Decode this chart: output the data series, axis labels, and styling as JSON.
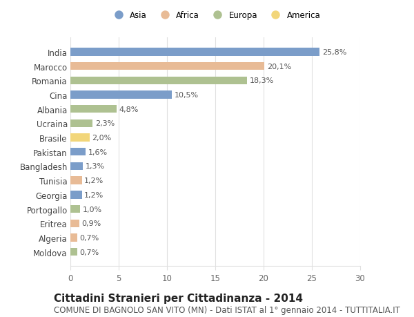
{
  "categories": [
    "India",
    "Marocco",
    "Romania",
    "Cina",
    "Albania",
    "Ucraina",
    "Brasile",
    "Pakistan",
    "Bangladesh",
    "Tunisia",
    "Georgia",
    "Portogallo",
    "Eritrea",
    "Algeria",
    "Moldova"
  ],
  "values": [
    25.8,
    20.1,
    18.3,
    10.5,
    4.8,
    2.3,
    2.0,
    1.6,
    1.3,
    1.2,
    1.2,
    1.0,
    0.9,
    0.7,
    0.7
  ],
  "labels": [
    "25,8%",
    "20,1%",
    "18,3%",
    "10,5%",
    "4,8%",
    "2,3%",
    "2,0%",
    "1,6%",
    "1,3%",
    "1,2%",
    "1,2%",
    "1,0%",
    "0,9%",
    "0,7%",
    "0,7%"
  ],
  "continents": [
    "Asia",
    "Africa",
    "Europa",
    "Asia",
    "Europa",
    "Europa",
    "America",
    "Asia",
    "Asia",
    "Africa",
    "Asia",
    "Europa",
    "Africa",
    "Africa",
    "Europa"
  ],
  "continent_colors": {
    "Asia": "#7b9dc9",
    "Africa": "#e8bb96",
    "Europa": "#aec191",
    "America": "#f2d67a"
  },
  "legend_order": [
    "Asia",
    "Africa",
    "Europa",
    "America"
  ],
  "title": "Cittadini Stranieri per Cittadinanza - 2014",
  "subtitle": "COMUNE DI BAGNOLO SAN VITO (MN) - Dati ISTAT al 1° gennaio 2014 - TUTTITALIA.IT",
  "xlim": [
    0,
    30
  ],
  "xticks": [
    0,
    5,
    10,
    15,
    20,
    25,
    30
  ],
  "background_color": "#ffffff",
  "grid_color": "#e0e0e0",
  "title_fontsize": 11,
  "subtitle_fontsize": 8.5,
  "label_fontsize": 8,
  "tick_fontsize": 8.5
}
